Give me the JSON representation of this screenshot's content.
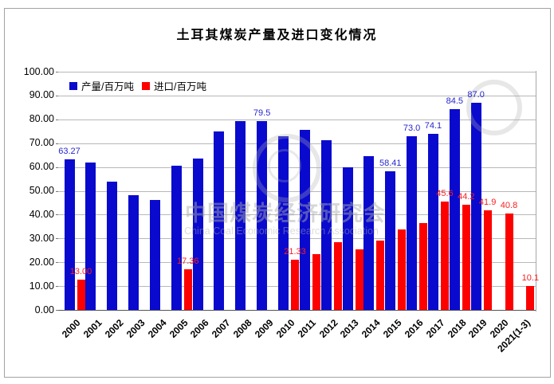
{
  "title": "土耳其煤炭产量及进口变化情况",
  "watermark": {
    "line_cn": "中国煤炭经济研究会",
    "line_en": "China Coal Economic Research Association"
  },
  "colors": {
    "production_bar": "#0a0ace",
    "import_bar": "#fd0000",
    "production_label": "#2626cf",
    "import_label": "#fb1f1f",
    "gridline": "#b8b8b8"
  },
  "chart_data": {
    "type": "bar",
    "title": "土耳其煤炭产量及进口变化情况",
    "categories": [
      "2000",
      "2001",
      "2002",
      "2003",
      "2004",
      "2005",
      "2006",
      "2007",
      "2008",
      "2009",
      "2010",
      "2011",
      "2012",
      "2013",
      "2014",
      "2015",
      "2016",
      "2017",
      "2018",
      "2019",
      "2020",
      "2021(1-3)"
    ],
    "series": [
      {
        "name": "产量/百万吨",
        "color": "#0a0ace",
        "label_color": "#2626cf",
        "values": [
          63.27,
          62.2,
          54.0,
          48.4,
          46.2,
          60.6,
          63.9,
          75.0,
          79.6,
          79.5,
          73.2,
          75.8,
          71.5,
          60.2,
          64.8,
          58.41,
          73.0,
          74.1,
          84.5,
          87.0,
          null,
          null
        ],
        "data_labels": {
          "0": "63.27",
          "9": "79.5",
          "15": "58.41",
          "16": "73.0",
          "17": "74.1",
          "18": "84.5",
          "19": "87.0"
        }
      },
      {
        "name": "进口/百万吨",
        "color": "#fd0000",
        "label_color": "#fb1f1f",
        "values": [
          13.0,
          null,
          null,
          null,
          null,
          17.36,
          null,
          null,
          null,
          null,
          21.33,
          23.6,
          28.6,
          25.6,
          29.2,
          34.1,
          36.6,
          45.6,
          44.2,
          41.9,
          40.8,
          10.1
        ],
        "data_labels": {
          "0": "13.00",
          "5": "17.36",
          "10": "21.33",
          "17": "45.6",
          "18": "44.2",
          "19": "41.9",
          "20": "40.8",
          "21": "10.1"
        }
      }
    ],
    "ylim": [
      0,
      100
    ],
    "ytick_step": 10,
    "yticks": [
      "100.00",
      "90.00",
      "80.00",
      "70.00",
      "60.00",
      "50.00",
      "40.00",
      "30.00",
      "20.00",
      "10.00",
      "0.00"
    ],
    "grid": true,
    "legend_position": "top-left-inside",
    "xlabel": "",
    "ylabel": ""
  }
}
